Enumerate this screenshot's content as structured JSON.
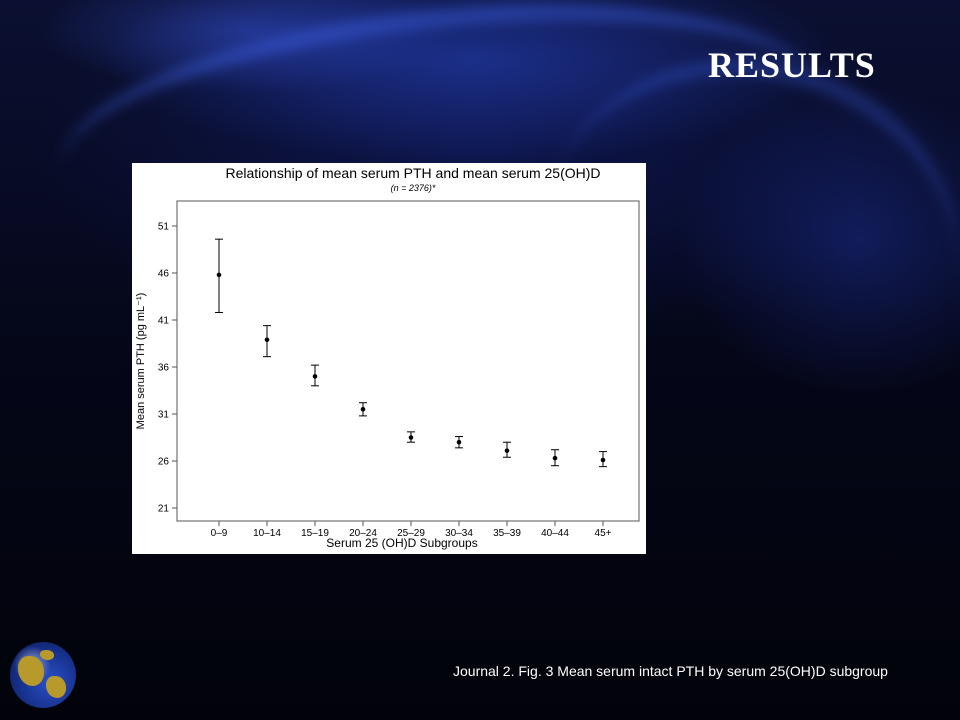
{
  "slide": {
    "title": "RESULTS",
    "caption": "Journal 2. Fig. 3 Mean serum intact PTH by serum 25(OH)D subgroup",
    "accent_color": "#1e3cc8",
    "logo_icon": "globe-icon"
  },
  "chart_data": {
    "type": "scatter",
    "title": "Relationship of mean serum PTH and mean serum 25(OH)D",
    "subtitle": "(n = 2376)*",
    "xlabel": "Serum 25 (OH)D Subgroups",
    "ylabel": "Mean serum PTH (pg mL⁻¹)",
    "categories": [
      "0–9",
      "10–14",
      "15–19",
      "20–24",
      "25–29",
      "30–34",
      "35–39",
      "40–44",
      "45+"
    ],
    "values": [
      45.8,
      38.9,
      35.0,
      31.5,
      28.5,
      28.0,
      27.1,
      26.3,
      26.1
    ],
    "error_low": [
      41.8,
      37.1,
      34.0,
      30.8,
      28.0,
      27.4,
      26.4,
      25.5,
      25.4
    ],
    "error_high": [
      49.6,
      40.4,
      36.2,
      32.2,
      29.1,
      28.6,
      28.0,
      27.2,
      27.0
    ],
    "ylim": [
      21,
      53
    ],
    "yticks": [
      21,
      26,
      31,
      36,
      41,
      46,
      51
    ],
    "grid": false,
    "color": "#000000"
  }
}
